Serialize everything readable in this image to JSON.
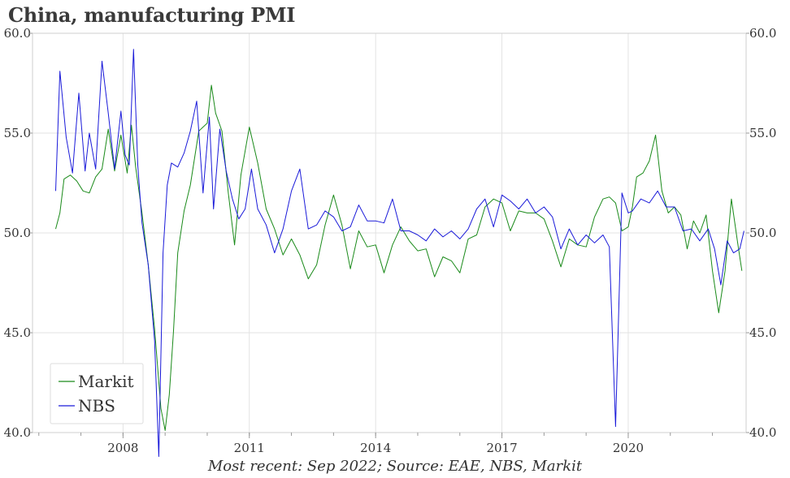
{
  "chart_data": {
    "type": "line",
    "title": "China, manufacturing PMI",
    "note": "Most recent: Sep 2022; Source: EAE, NBS, Markit",
    "xlabel": "",
    "ylabel": "",
    "ylim": [
      40,
      60
    ],
    "xlim": [
      2005.85,
      2022.8
    ],
    "yticks": [
      40,
      45,
      50,
      55,
      60
    ],
    "ytick_labels": [
      "40.0",
      "45.0",
      "50.0",
      "55.0",
      "60.0"
    ],
    "xticks": [
      2008,
      2011,
      2014,
      2017,
      2020
    ],
    "xtick_labels": [
      "2008",
      "2011",
      "2014",
      "2017",
      "2020"
    ],
    "grid": true,
    "legend_position": "bottom-left",
    "series": [
      {
        "name": "Markit",
        "color": "#1a8a1a",
        "x": [
          2006.4,
          2006.5,
          2006.6,
          2006.75,
          2006.9,
          2007.05,
          2007.2,
          2007.35,
          2007.5,
          2007.65,
          2007.8,
          2007.95,
          2008.1,
          2008.2,
          2008.3,
          2008.45,
          2008.6,
          2008.75,
          2008.9,
          2009.0,
          2009.1,
          2009.2,
          2009.3,
          2009.45,
          2009.6,
          2009.8,
          2010.0,
          2010.1,
          2010.2,
          2010.35,
          2010.5,
          2010.65,
          2010.8,
          2011.0,
          2011.2,
          2011.4,
          2011.6,
          2011.8,
          2012.0,
          2012.2,
          2012.4,
          2012.6,
          2012.8,
          2013.0,
          2013.2,
          2013.4,
          2013.6,
          2013.8,
          2014.0,
          2014.2,
          2014.4,
          2014.6,
          2014.8,
          2015.0,
          2015.2,
          2015.4,
          2015.6,
          2015.8,
          2016.0,
          2016.2,
          2016.4,
          2016.6,
          2016.8,
          2017.0,
          2017.2,
          2017.4,
          2017.6,
          2017.8,
          2018.0,
          2018.2,
          2018.4,
          2018.6,
          2018.8,
          2019.0,
          2019.2,
          2019.4,
          2019.55,
          2019.7,
          2019.85,
          2020.0,
          2020.1,
          2020.2,
          2020.35,
          2020.5,
          2020.65,
          2020.8,
          2020.95,
          2021.1,
          2021.25,
          2021.4,
          2021.55,
          2021.7,
          2021.85,
          2022.0,
          2022.15,
          2022.3,
          2022.45,
          2022.6,
          2022.7
        ],
        "values": [
          50.2,
          51.0,
          52.7,
          52.9,
          52.6,
          52.1,
          52.0,
          52.8,
          53.2,
          55.2,
          53.1,
          54.9,
          53.0,
          55.4,
          53.3,
          51.0,
          48.4,
          45.2,
          41.2,
          40.1,
          41.9,
          45.1,
          49.0,
          51.1,
          52.4,
          55.1,
          55.5,
          57.4,
          56.0,
          55.1,
          52.0,
          49.4,
          52.9,
          55.3,
          53.5,
          51.2,
          50.2,
          48.9,
          49.7,
          48.9,
          47.7,
          48.4,
          50.4,
          51.9,
          50.4,
          48.2,
          50.1,
          49.3,
          49.4,
          48.0,
          49.4,
          50.3,
          49.6,
          49.1,
          49.2,
          47.8,
          48.8,
          48.6,
          48.0,
          49.7,
          49.9,
          51.3,
          51.7,
          51.5,
          50.1,
          51.1,
          51.0,
          51.0,
          50.7,
          49.6,
          48.3,
          49.7,
          49.4,
          49.3,
          50.8,
          51.7,
          51.8,
          51.5,
          50.1,
          50.3,
          51.3,
          52.8,
          53.0,
          53.6,
          54.9,
          52.1,
          51.0,
          51.3,
          50.9,
          49.2,
          50.6,
          50.0,
          50.9,
          48.1,
          46.0,
          48.1,
          51.7,
          49.5,
          48.1
        ]
      },
      {
        "name": "NBS",
        "color": "#1a1ad9",
        "x": [
          2006.4,
          2006.5,
          2006.65,
          2006.8,
          2006.95,
          2007.1,
          2007.2,
          2007.35,
          2007.5,
          2007.65,
          2007.8,
          2007.95,
          2008.05,
          2008.15,
          2008.25,
          2008.35,
          2008.45,
          2008.6,
          2008.75,
          2008.85,
          2008.95,
          2009.05,
          2009.15,
          2009.3,
          2009.45,
          2009.6,
          2009.75,
          2009.9,
          2010.05,
          2010.15,
          2010.3,
          2010.45,
          2010.6,
          2010.75,
          2010.9,
          2011.05,
          2011.2,
          2011.4,
          2011.6,
          2011.8,
          2012.0,
          2012.2,
          2012.4,
          2012.6,
          2012.8,
          2013.0,
          2013.2,
          2013.4,
          2013.6,
          2013.8,
          2014.0,
          2014.2,
          2014.4,
          2014.6,
          2014.8,
          2015.0,
          2015.2,
          2015.4,
          2015.6,
          2015.8,
          2016.0,
          2016.2,
          2016.4,
          2016.6,
          2016.8,
          2017.0,
          2017.2,
          2017.4,
          2017.6,
          2017.8,
          2018.0,
          2018.2,
          2018.4,
          2018.6,
          2018.8,
          2019.0,
          2019.2,
          2019.4,
          2019.55,
          2019.7,
          2019.85,
          2020.0,
          2020.1,
          2020.3,
          2020.5,
          2020.7,
          2020.9,
          2021.1,
          2021.3,
          2021.5,
          2021.7,
          2021.9,
          2022.05,
          2022.2,
          2022.35,
          2022.5,
          2022.65,
          2022.75
        ],
        "values": [
          52.1,
          58.1,
          54.8,
          53.0,
          57.0,
          53.1,
          55.0,
          53.2,
          58.6,
          56.0,
          53.2,
          56.1,
          53.9,
          53.4,
          59.2,
          53.4,
          50.5,
          48.4,
          44.6,
          38.8,
          49.0,
          52.4,
          53.5,
          53.3,
          54.0,
          55.1,
          56.6,
          52.0,
          55.8,
          51.2,
          55.2,
          53.1,
          51.7,
          50.7,
          51.2,
          53.2,
          51.2,
          50.4,
          49.0,
          50.2,
          52.1,
          53.2,
          50.2,
          50.4,
          51.1,
          50.8,
          50.1,
          50.3,
          51.4,
          50.6,
          50.6,
          50.5,
          51.7,
          50.1,
          50.1,
          49.9,
          49.6,
          50.2,
          49.8,
          50.1,
          49.7,
          50.2,
          51.2,
          51.7,
          50.3,
          51.9,
          51.6,
          51.2,
          51.7,
          51.0,
          51.3,
          50.8,
          49.2,
          50.2,
          49.4,
          49.9,
          49.5,
          49.9,
          49.3,
          40.3,
          52.0,
          51.0,
          51.1,
          51.7,
          51.5,
          52.1,
          51.3,
          51.3,
          50.1,
          50.2,
          49.6,
          50.2,
          49.2,
          47.4,
          49.6,
          49.0,
          49.2,
          50.1
        ]
      }
    ]
  }
}
